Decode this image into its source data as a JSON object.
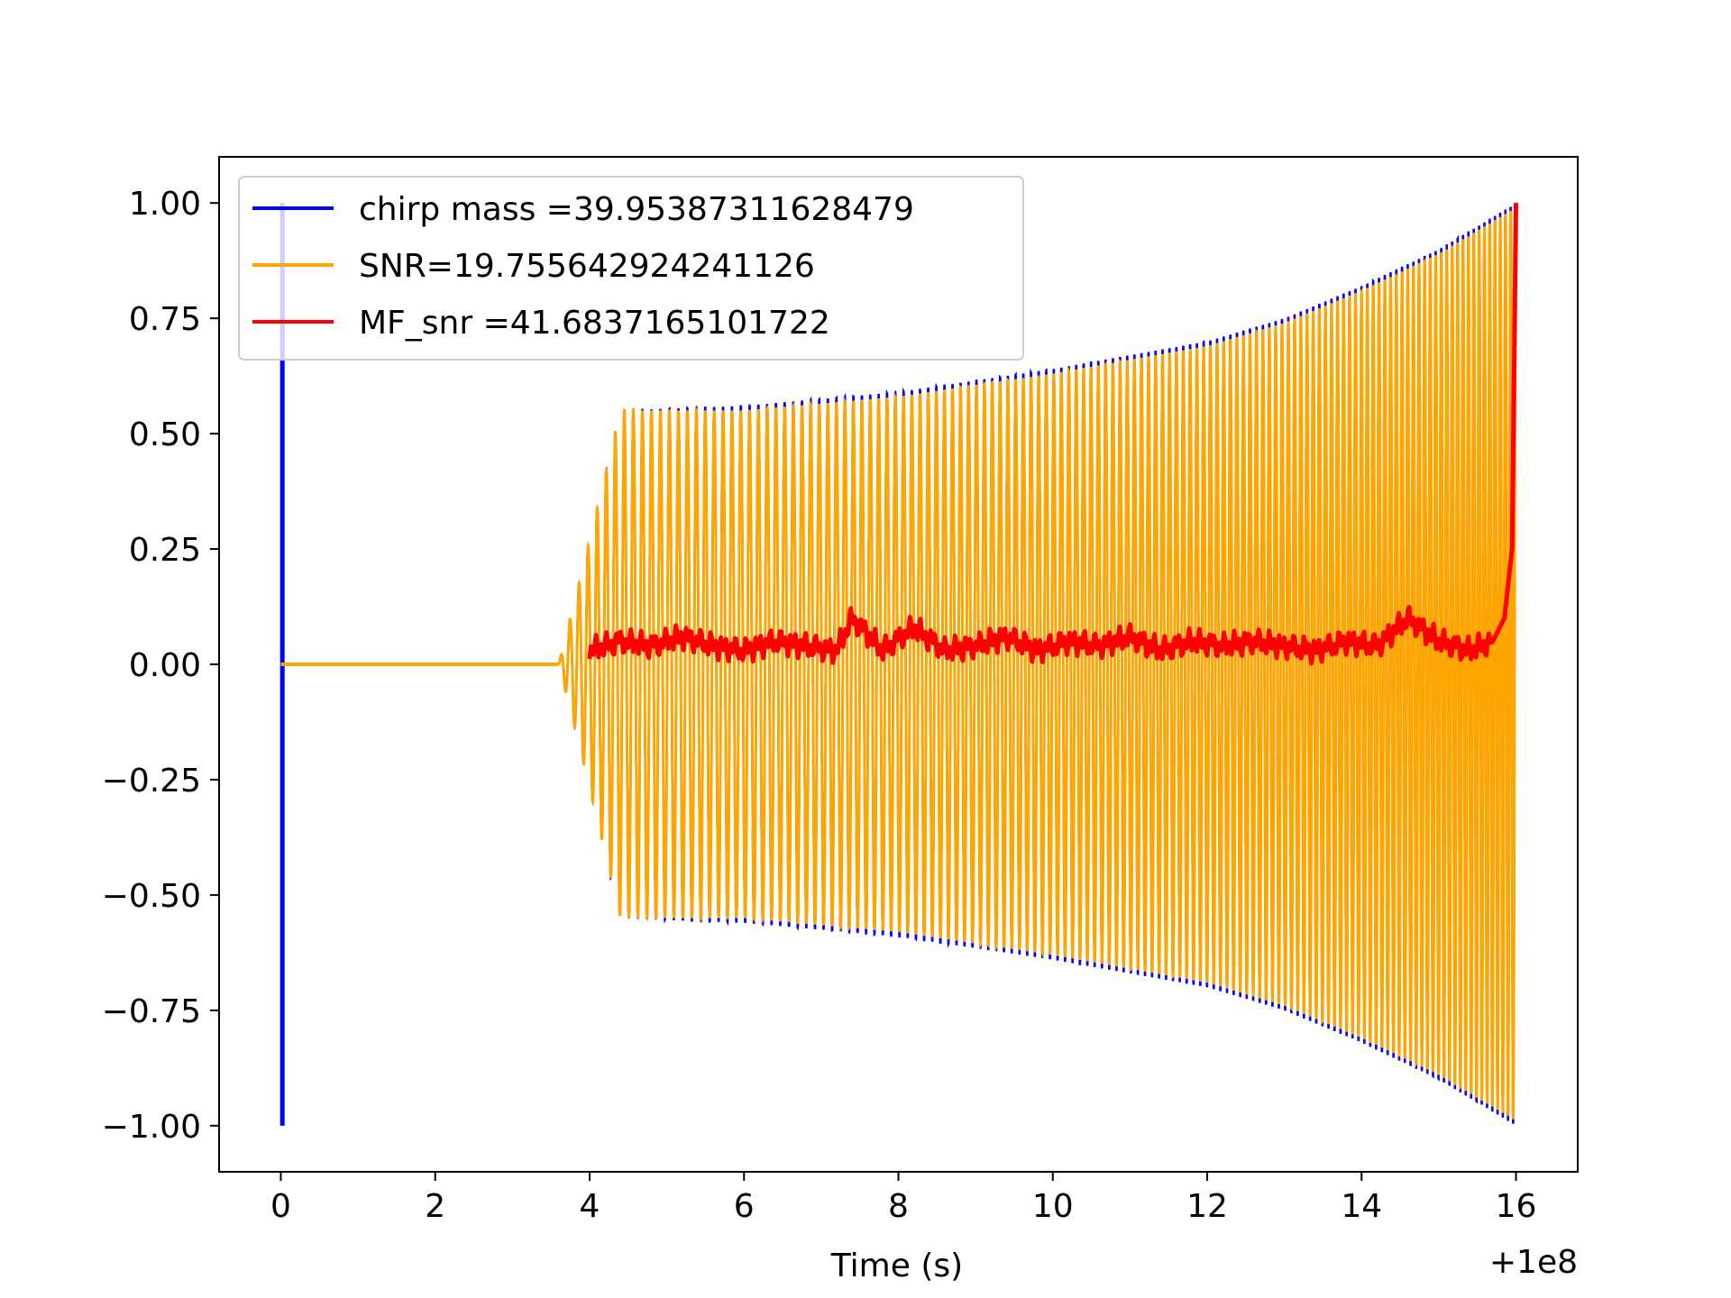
{
  "chart_data": {
    "type": "line",
    "title": "",
    "xlabel": "Time (s)",
    "ylabel": "",
    "x_offset_label": "+1e8",
    "xlim": [
      -0.8,
      16.8
    ],
    "ylim": [
      -1.1,
      1.1
    ],
    "x_ticks": [
      0,
      2,
      4,
      6,
      8,
      10,
      12,
      14,
      16
    ],
    "x_tick_labels": [
      "0",
      "2",
      "4",
      "6",
      "8",
      "10",
      "12",
      "14",
      "16"
    ],
    "y_ticks": [
      1.0,
      0.75,
      0.5,
      0.25,
      0.0,
      -0.25,
      -0.5,
      -0.75,
      -1.0
    ],
    "y_tick_labels": [
      "1.00",
      "0.75",
      "0.50",
      "0.25",
      "0.00",
      "−0.25",
      "−0.50",
      "−0.75",
      "−1.00"
    ],
    "grid": false,
    "legend_position": "top-left",
    "series": [
      {
        "name": "chirp mass =39.95387311628479",
        "color": "#0000ff",
        "description_points": {
          "spike_at_x": 0.02,
          "spike_range": [
            -1.0,
            1.0
          ],
          "waveform_start": 3.6,
          "waveform_end": 16.0,
          "envelope": [
            [
              3.6,
              0.0
            ],
            [
              3.9,
              0.2
            ],
            [
              4.4,
              0.55
            ],
            [
              6,
              0.56
            ],
            [
              8,
              0.59
            ],
            [
              10,
              0.64
            ],
            [
              12,
              0.7
            ],
            [
              13,
              0.75
            ],
            [
              14,
              0.82
            ],
            [
              15,
              0.9
            ],
            [
              16,
              1.0
            ]
          ]
        }
      },
      {
        "name": "SNR=19.755642924241126",
        "color": "#ffa500",
        "description_points": {
          "flat_from": 0.0,
          "flat_to": 3.6,
          "waveform_start": 3.6,
          "waveform_end": 16.0,
          "envelope": [
            [
              3.6,
              0.0
            ],
            [
              3.9,
              0.2
            ],
            [
              4.4,
              0.55
            ],
            [
              6,
              0.55
            ],
            [
              8,
              0.58
            ],
            [
              10,
              0.63
            ],
            [
              12,
              0.69
            ],
            [
              13,
              0.74
            ],
            [
              14,
              0.81
            ],
            [
              15,
              0.89
            ],
            [
              16,
              0.99
            ]
          ]
        }
      },
      {
        "name": "MF_snr =41.6837165101722",
        "color": "#ff0000",
        "x": [
          4.0,
          4.4,
          4.8,
          5.2,
          5.6,
          6.0,
          6.4,
          6.8,
          7.2,
          7.4,
          7.8,
          8.2,
          8.6,
          9.0,
          9.4,
          9.8,
          10.2,
          10.6,
          11.0,
          11.4,
          11.8,
          12.2,
          12.6,
          13.0,
          13.4,
          13.8,
          14.2,
          14.6,
          15.0,
          15.4,
          15.7,
          15.85,
          15.95,
          16.0
        ],
        "values": [
          0.03,
          0.05,
          0.04,
          0.06,
          0.04,
          0.03,
          0.05,
          0.04,
          0.03,
          0.1,
          0.03,
          0.08,
          0.03,
          0.04,
          0.06,
          0.03,
          0.05,
          0.04,
          0.06,
          0.03,
          0.05,
          0.04,
          0.05,
          0.04,
          0.03,
          0.05,
          0.04,
          0.1,
          0.05,
          0.03,
          0.05,
          0.1,
          0.25,
          1.0
        ]
      }
    ]
  }
}
